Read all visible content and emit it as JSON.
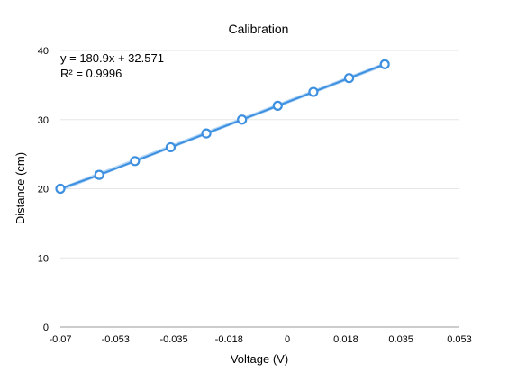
{
  "chart_data": {
    "type": "scatter",
    "title": "Calibration",
    "xlabel": "Voltage (V)",
    "ylabel": "Distance (cm)",
    "xlim": [
      -0.07,
      0.053
    ],
    "ylim": [
      0,
      40
    ],
    "x_ticks": [
      -0.07,
      -0.053,
      -0.035,
      -0.018,
      0,
      0.018,
      0.035,
      0.053
    ],
    "x_tick_labels": [
      "-0.07",
      "-0.053",
      "-0.035",
      "-0.018",
      "0",
      "0.018",
      "0.035",
      "0.053"
    ],
    "y_ticks": [
      0,
      10,
      20,
      30,
      40
    ],
    "y_tick_labels": [
      "0",
      "10",
      "20",
      "30",
      "40"
    ],
    "grid": true,
    "trendline": {
      "slope": 180.9,
      "intercept": 32.571,
      "equation": "y = 180.9x + 32.571",
      "r_squared": "R² = 0.9996"
    },
    "series": [
      {
        "x": [
          -0.07,
          -0.058,
          -0.047,
          -0.036,
          -0.025,
          -0.014,
          -0.003,
          0.008,
          0.019,
          0.03
        ],
        "y": [
          20,
          22,
          24,
          26,
          28,
          30,
          32,
          34,
          36,
          38
        ]
      }
    ],
    "colors": {
      "series": "#3d8fe0",
      "trend": "#a9d0f5"
    }
  }
}
